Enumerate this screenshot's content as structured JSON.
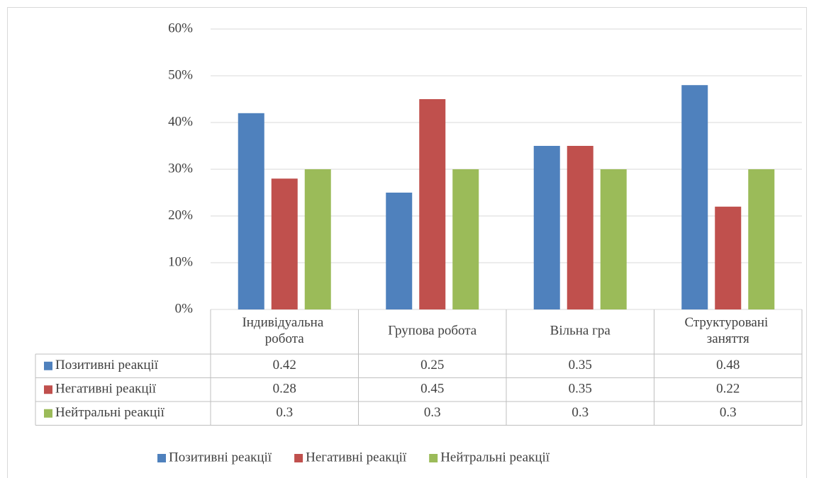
{
  "chart_data": {
    "type": "bar",
    "categories": [
      "Індивідуальна робота",
      "Групова робота",
      "Вільна гра",
      "Структуровані заняття"
    ],
    "series": [
      {
        "name": "Позитивні реакції",
        "color": "#4f81bd",
        "values": [
          42,
          25,
          35,
          48
        ],
        "value_labels": [
          "0.42",
          "0.25",
          "0.35",
          "0.48"
        ]
      },
      {
        "name": "Негативні реакції",
        "color": "#c0504d",
        "values": [
          28,
          45,
          35,
          22
        ],
        "value_labels": [
          "0.28",
          "0.45",
          "0.35",
          "0.22"
        ]
      },
      {
        "name": "Нейтральні реакції",
        "color": "#9bbb59",
        "values": [
          30,
          30,
          30,
          30
        ],
        "value_labels": [
          "0.3",
          "0.3",
          "0.3",
          "0.3"
        ]
      }
    ],
    "ylim": [
      0,
      60
    ],
    "yticks": [
      {
        "value": 0,
        "label": "0%"
      },
      {
        "value": 10,
        "label": "10%"
      },
      {
        "value": 20,
        "label": "20%"
      },
      {
        "value": 30,
        "label": "30%"
      },
      {
        "value": 40,
        "label": "40%"
      },
      {
        "value": 50,
        "label": "50%"
      },
      {
        "value": 60,
        "label": "60%"
      }
    ],
    "grid": true,
    "legend": "bottom",
    "data_table": true
  }
}
